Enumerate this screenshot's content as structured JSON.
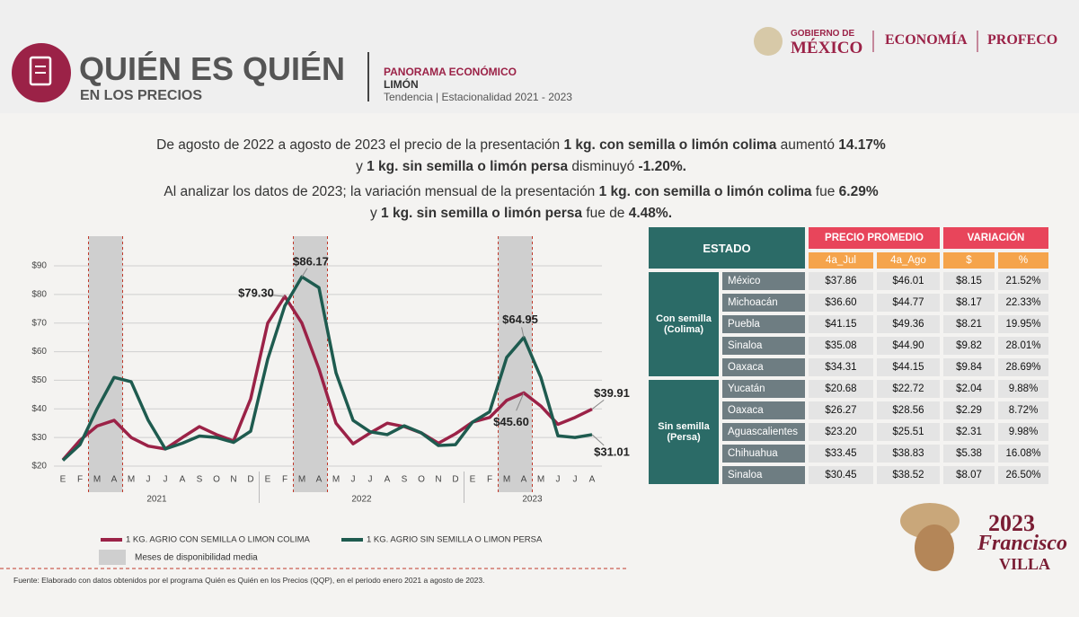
{
  "header": {
    "title": "QUIÉN ES QUIÉN",
    "subtitle": "EN LOS PRECIOS",
    "section": "PANORAMA ECONÓMICO",
    "product": "LIMÓN",
    "caption": "Tendencia | Estacionalidad 2021 - 2023"
  },
  "logos": {
    "gobierno_top": "GOBIERNO DE",
    "gobierno": "MÉXICO",
    "economia": "ECONOMÍA",
    "profeco": "PROFECO",
    "year": "2023",
    "name1": "Francisco",
    "name2": "VILLA"
  },
  "summary": {
    "lines": [
      [
        {
          "text": "De agosto de 2022 a agosto de 2023 el precio de la presentación "
        },
        {
          "text": "1 kg. con semilla o limón colima",
          "bold": true
        },
        {
          "text": " aumentó "
        },
        {
          "text": "14.17%",
          "bold": true
        }
      ],
      [
        {
          "text": "y "
        },
        {
          "text": "1 kg. sin semilla o limón persa",
          "bold": true
        },
        {
          "text": " disminuyó "
        },
        {
          "text": "-1.20%.",
          "bold": true
        }
      ],
      [
        {
          "text": "Al analizar los datos de 2023; la variación mensual de la presentación "
        },
        {
          "text": "1 kg. con semilla o limón colima",
          "bold": true
        },
        {
          "text": " fue "
        },
        {
          "text": "6.29%",
          "bold": true
        }
      ],
      [
        {
          "text": "y "
        },
        {
          "text": "1 kg. sin semilla o limón persa",
          "bold": true
        },
        {
          "text": " fue de "
        },
        {
          "text": "4.48%.",
          "bold": true
        }
      ]
    ]
  },
  "chart_data": {
    "type": "line",
    "categories": [
      "E",
      "F",
      "M",
      "A",
      "M",
      "J",
      "J",
      "A",
      "S",
      "O",
      "N",
      "D",
      "E",
      "F",
      "M",
      "A",
      "M",
      "J",
      "J",
      "A",
      "S",
      "O",
      "N",
      "D",
      "E",
      "F",
      "M",
      "A",
      "M",
      "J",
      "J",
      "A"
    ],
    "year_groups": [
      {
        "label": "2021",
        "start": 0,
        "end": 11
      },
      {
        "label": "2022",
        "start": 12,
        "end": 23
      },
      {
        "label": "2023",
        "start": 24,
        "end": 31
      }
    ],
    "highlight": {
      "label": "Meses de disponibilidad media",
      "ranges": [
        [
          2,
          3
        ],
        [
          14,
          15
        ],
        [
          26,
          27
        ]
      ],
      "color": "#cfcfcf"
    },
    "series": [
      {
        "name": "1 KG. AGRIO CON SEMILLA O LIMON COLIMA",
        "color": "#9b2247",
        "values": [
          22.2,
          29,
          34,
          36,
          30,
          27,
          26,
          30,
          33.8,
          31,
          28.8,
          43.5,
          70,
          79.3,
          70,
          54,
          35,
          27.8,
          31.6,
          35,
          33.8,
          31.6,
          28,
          31.3,
          35.4,
          37,
          43,
          45.6,
          41,
          34.6,
          37,
          39.91
        ],
        "value_labels": [
          null,
          null,
          null,
          null,
          null,
          null,
          null,
          null,
          null,
          null,
          null,
          null,
          null,
          "$79.30",
          null,
          null,
          null,
          null,
          null,
          null,
          null,
          null,
          null,
          null,
          null,
          null,
          null,
          "$45.60",
          null,
          null,
          null,
          "$39.91"
        ]
      },
      {
        "name": "1 KG. AGRIO SIN SEMILLA O LIMON PERSA",
        "color": "#1e5b4f",
        "values": [
          22,
          27.5,
          40,
          51,
          49.5,
          36,
          26,
          28,
          30.5,
          30,
          28.3,
          32.2,
          57.4,
          76,
          86.17,
          82.4,
          52.6,
          36,
          32,
          31,
          34.1,
          31.6,
          27.2,
          27.5,
          35.4,
          39,
          58,
          64.95,
          51,
          30.6,
          30,
          31.01
        ],
        "value_labels": [
          null,
          null,
          null,
          null,
          null,
          null,
          null,
          null,
          null,
          null,
          null,
          null,
          null,
          null,
          "$86.17",
          null,
          null,
          null,
          null,
          null,
          null,
          null,
          null,
          null,
          null,
          null,
          null,
          "$64.95",
          null,
          null,
          null,
          "$31.01"
        ]
      }
    ],
    "ylim": [
      20,
      90
    ],
    "yticks": [
      {
        "value": 20,
        "label": "$20"
      },
      {
        "value": 30,
        "label": "$30"
      },
      {
        "value": 40,
        "label": "$40"
      },
      {
        "value": 50,
        "label": "$50"
      },
      {
        "value": 60,
        "label": "$60"
      },
      {
        "value": 70,
        "label": "$70"
      },
      {
        "value": 80,
        "label": "$80"
      },
      {
        "value": 90,
        "label": "$90"
      }
    ],
    "grid": true
  },
  "table": {
    "header": {
      "estado": "ESTADO",
      "precio": "PRECIO PROMEDIO",
      "variacion": "VARIACIÓN",
      "cols": [
        "4a_Jul",
        "4a_Ago",
        "$",
        "%"
      ]
    },
    "groups": [
      {
        "label": "Con semilla (Colima)",
        "rows": [
          [
            "México",
            "$37.86",
            "$46.01",
            "$8.15",
            "21.52%"
          ],
          [
            "Michoacán",
            "$36.60",
            "$44.77",
            "$8.17",
            "22.33%"
          ],
          [
            "Puebla",
            "$41.15",
            "$49.36",
            "$8.21",
            "19.95%"
          ],
          [
            "Sinaloa",
            "$35.08",
            "$44.90",
            "$9.82",
            "28.01%"
          ],
          [
            "Oaxaca",
            "$34.31",
            "$44.15",
            "$9.84",
            "28.69%"
          ]
        ]
      },
      {
        "label": "Sin semilla (Persa)",
        "rows": [
          [
            "Yucatán",
            "$20.68",
            "$22.72",
            "$2.04",
            "9.88%"
          ],
          [
            "Oaxaca",
            "$26.27",
            "$28.56",
            "$2.29",
            "8.72%"
          ],
          [
            "Aguascalientes",
            "$23.20",
            "$25.51",
            "$2.31",
            "9.98%"
          ],
          [
            "Chihuahua",
            "$33.45",
            "$38.83",
            "$5.38",
            "16.08%"
          ],
          [
            "Sinaloa",
            "$30.45",
            "$38.52",
            "$8.07",
            "26.50%"
          ]
        ]
      }
    ]
  },
  "footer": "Fuente: Elaborado con datos obtenidos por el programa Quién es Quién en los Precios (QQP), en el periodo enero 2021 a agosto de 2023."
}
